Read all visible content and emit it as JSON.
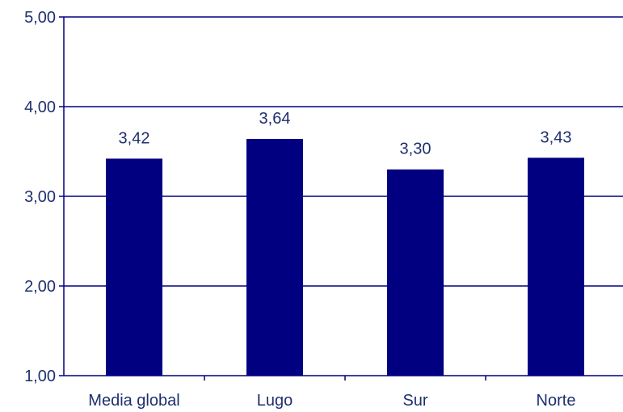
{
  "chart_data": {
    "type": "bar",
    "categories": [
      "Media global",
      "Lugo",
      "Sur",
      "Norte"
    ],
    "values": [
      3.42,
      3.64,
      3.3,
      3.43
    ],
    "value_labels": [
      "3,42",
      "3,64",
      "3,30",
      "3,43"
    ],
    "title": "",
    "xlabel": "",
    "ylabel": "",
    "ylim": [
      1,
      5
    ],
    "yticks": [
      1,
      2,
      3,
      4,
      5
    ],
    "ytick_labels": [
      "1,00",
      "2,00",
      "3,00",
      "4,00",
      "5,00"
    ],
    "grid": true,
    "legend": "none",
    "bar_color": "#000080",
    "axis_color": "#000080",
    "text_color": "#1f2f6f"
  }
}
